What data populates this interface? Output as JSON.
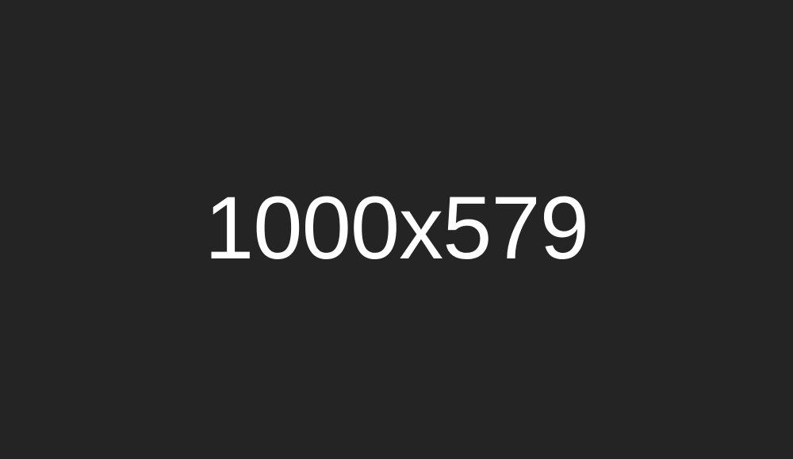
{
  "placeholder": {
    "text": "1000x579"
  },
  "colors": {
    "background": "#242424",
    "text": "#ffffff"
  }
}
